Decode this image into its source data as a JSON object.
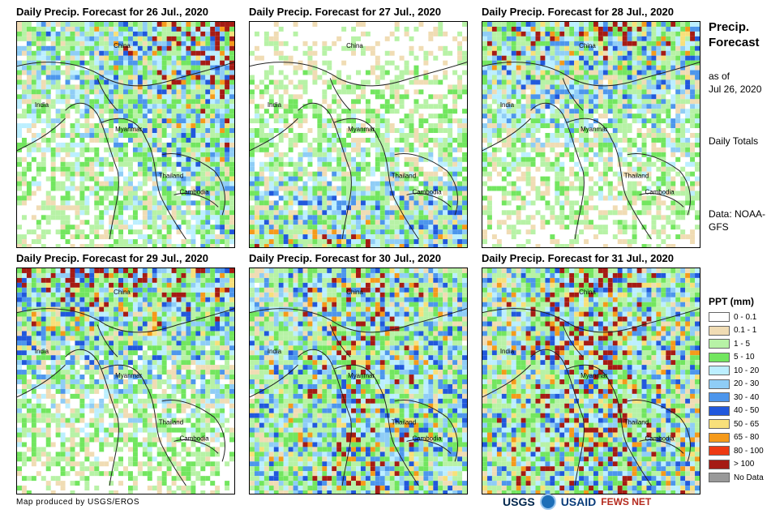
{
  "panels": [
    {
      "title": "Daily Precip. Forecast for 26 Jul., 2020",
      "seed": 11,
      "wet": 0.55,
      "bias": "north-east"
    },
    {
      "title": "Daily Precip. Forecast for 27 Jul., 2020",
      "seed": 23,
      "wet": 0.45,
      "bias": "south"
    },
    {
      "title": "Daily Precip. Forecast for 28 Jul., 2020",
      "seed": 37,
      "wet": 0.55,
      "bias": "north"
    },
    {
      "title": "Daily Precip. Forecast for 29 Jul., 2020",
      "seed": 41,
      "wet": 0.6,
      "bias": "north"
    },
    {
      "title": "Daily Precip. Forecast for 30 Jul., 2020",
      "seed": 53,
      "wet": 0.6,
      "bias": "center"
    },
    {
      "title": "Daily Precip. Forecast for 31 Jul., 2020",
      "seed": 67,
      "wet": 0.65,
      "bias": "center"
    }
  ],
  "place_labels": {
    "china": "China",
    "india": "India",
    "myanmar": "Myanmar",
    "thailand": "Thailand",
    "cambodia": "Cambodia"
  },
  "side": {
    "title": "Precip. Forecast",
    "as_of": "as of",
    "date": "Jul 26, 2020",
    "totals": "Daily Totals",
    "data": "Data: NOAA-GFS"
  },
  "legend": {
    "title": "PPT (mm)",
    "items": [
      {
        "label": "0 - 0.1",
        "color": "#ffffff"
      },
      {
        "label": "0.1 - 1",
        "color": "#f0dcb4"
      },
      {
        "label": "1 - 5",
        "color": "#b7f2a6"
      },
      {
        "label": "5 - 10",
        "color": "#72e65f"
      },
      {
        "label": "10 - 20",
        "color": "#bcefff"
      },
      {
        "label": "20 - 30",
        "color": "#8fcdf6"
      },
      {
        "label": "30 - 40",
        "color": "#4d96ec"
      },
      {
        "label": "40 - 50",
        "color": "#2158dc"
      },
      {
        "label": "50 - 65",
        "color": "#f8e07a"
      },
      {
        "label": "65 - 80",
        "color": "#f59a1a"
      },
      {
        "label": "80 - 100",
        "color": "#ee3a12"
      },
      {
        "label": "> 100",
        "color": "#a51b14"
      },
      {
        "label": "No Data",
        "color": "#999999"
      }
    ]
  },
  "footer": {
    "credit": "Map produced by USGS/EROS",
    "logos": [
      "USGS",
      "NOAA",
      "USAID",
      "FEWS NET"
    ]
  }
}
